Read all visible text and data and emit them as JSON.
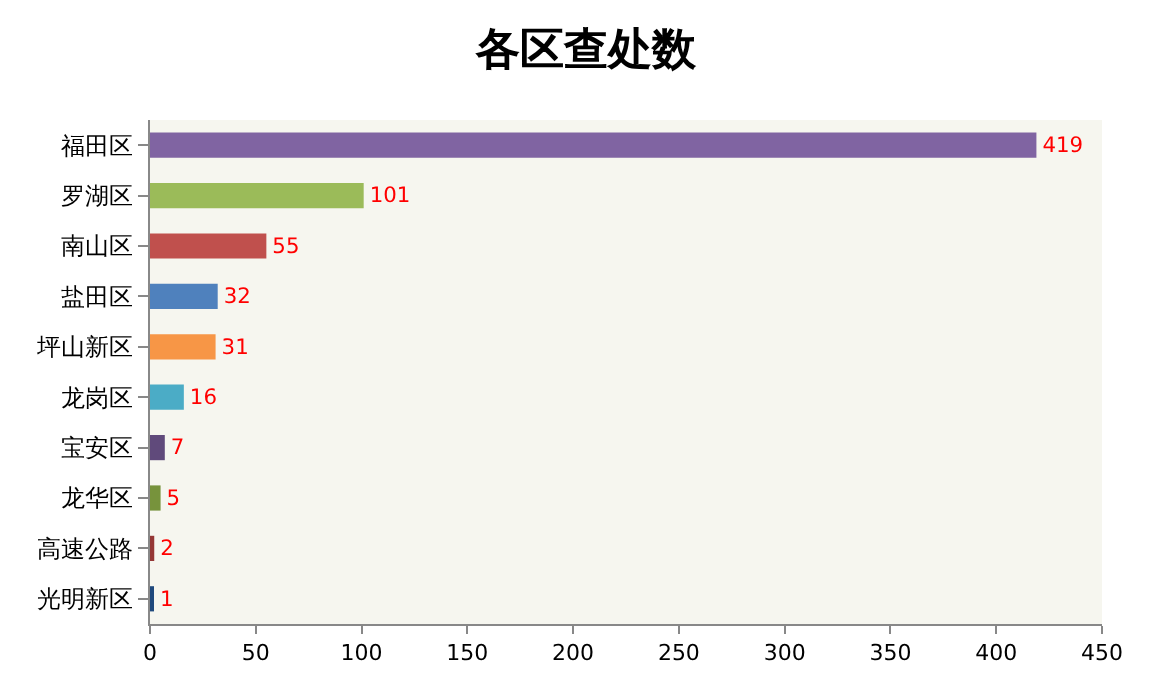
{
  "chart_data": {
    "type": "bar",
    "orientation": "horizontal",
    "title": "各区查处数",
    "categories": [
      "福田区",
      "罗湖区",
      "南山区",
      "盐田区",
      "坪山新区",
      "龙岗区",
      "宝安区",
      "龙华区",
      "高速公路",
      "光明新区"
    ],
    "values": [
      419,
      101,
      55,
      32,
      31,
      16,
      7,
      5,
      2,
      1
    ],
    "colors": [
      "#8064a2",
      "#9bbb59",
      "#c0504d",
      "#4f81bd",
      "#f79646",
      "#4bacc6",
      "#604a7b",
      "#77933c",
      "#953735",
      "#1f497d"
    ],
    "xlim": [
      0,
      450
    ],
    "xticks": [
      0,
      50,
      100,
      150,
      200,
      250,
      300,
      350,
      400,
      450
    ],
    "data_labels": true,
    "grid": false,
    "legend": false
  }
}
